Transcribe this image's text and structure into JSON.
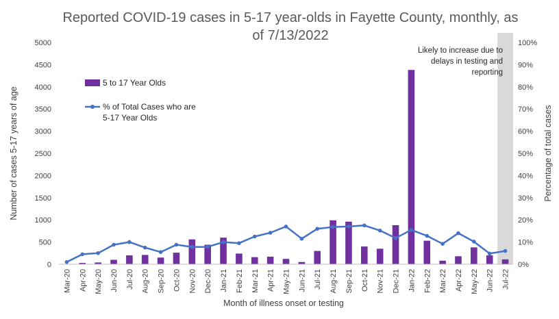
{
  "chart_data": {
    "type": "bar+line",
    "title_line1": "Reported COVID-19 cases in 5-17 year-olds in Fayette County, monthly, as",
    "title_line2": "of 7/13/2022",
    "xlabel": "Month of illness onset or testing",
    "ylabel_left": "Number of cases 5-17 years of age",
    "ylabel_right": "Percentage of total cases",
    "ylim_left": [
      0,
      5000
    ],
    "left_ticks": [
      "0",
      "500",
      "1000",
      "1500",
      "2000",
      "2500",
      "3000",
      "3500",
      "4000",
      "4500",
      "5000"
    ],
    "ylim_right": [
      0,
      100
    ],
    "right_ticks": [
      "0%",
      "10%",
      "20%",
      "30%",
      "40%",
      "50%",
      "60%",
      "70%",
      "80%",
      "90%",
      "100%"
    ],
    "categories": [
      "Mar-20",
      "Apr-20",
      "May-20",
      "Jun-20",
      "Jul-20",
      "Aug-20",
      "Sep-20",
      "Oct-20",
      "Nov-20",
      "Dec-20",
      "Jan-21",
      "Feb-21",
      "Mar-21",
      "Apr-21",
      "May-21",
      "Jun-21",
      "Jul-21",
      "Aug-21",
      "Sep-21",
      "Oct-21",
      "Nov-21",
      "Dec-21",
      "Jan-22",
      "Feb-22",
      "Mar-22",
      "Apr-22",
      "May-22",
      "Jun-22",
      "Jul-22"
    ],
    "series": [
      {
        "name": "5 to 17 Year Olds",
        "type": "bar",
        "axis": "left",
        "color": "#7030A0",
        "values": [
          5,
          30,
          40,
          100,
          200,
          210,
          150,
          260,
          560,
          440,
          600,
          240,
          160,
          170,
          120,
          50,
          300,
          990,
          960,
          400,
          350,
          880,
          4380,
          530,
          80,
          180,
          380,
          200,
          110
        ]
      },
      {
        "name": "% of Total Cases who are 5-17 Year Olds",
        "type": "line",
        "axis": "right",
        "color": "#4472C4",
        "values": [
          1,
          4.5,
          5,
          8.8,
          10,
          7.5,
          5.5,
          8.8,
          7.8,
          7.8,
          10,
          9.5,
          12.5,
          14.2,
          17,
          11.5,
          16,
          16.8,
          17,
          17.5,
          15.2,
          11.8,
          15.5,
          12.8,
          9.2,
          14,
          10.2,
          4.8,
          6
        ]
      }
    ],
    "highlight_category": "Jul-22",
    "annotation_lines": [
      "Likely to increase due to",
      "delays in testing and",
      "reporting"
    ],
    "legend_position": "top-left",
    "grid": false
  }
}
